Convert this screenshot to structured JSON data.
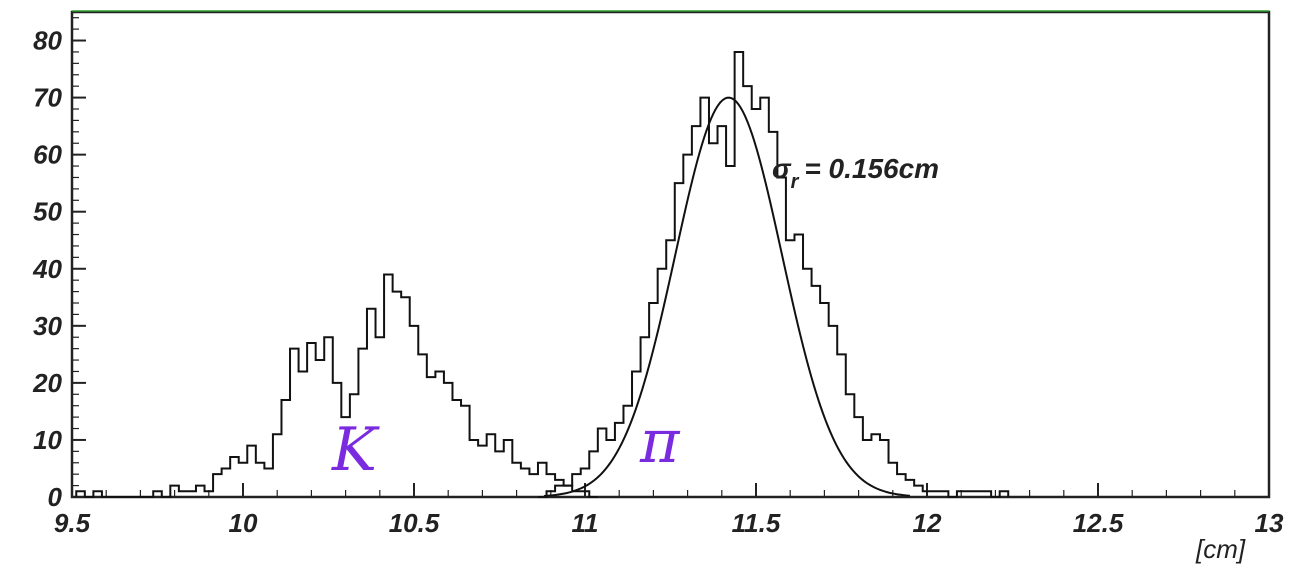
{
  "chart_data": {
    "type": "histogram",
    "title": "",
    "xlabel": "[cm]",
    "ylabel": "",
    "xlim": [
      9.5,
      13
    ],
    "ylim": [
      0,
      85
    ],
    "bin_width": 0.025,
    "x_ticks": [
      "9.5",
      "10",
      "10.5",
      "11",
      "11.5",
      "12",
      "12.5",
      "13"
    ],
    "y_ticks": [
      "0",
      "10",
      "20",
      "30",
      "40",
      "50",
      "60",
      "70",
      "80"
    ],
    "series": [
      {
        "name": "K",
        "bins": [
          [
            9.525,
            1
          ],
          [
            9.55,
            0
          ],
          [
            9.575,
            1
          ],
          [
            9.6,
            0
          ],
          [
            9.625,
            0
          ],
          [
            9.65,
            0
          ],
          [
            9.675,
            0
          ],
          [
            9.7,
            0
          ],
          [
            9.725,
            0
          ],
          [
            9.75,
            1
          ],
          [
            9.775,
            0
          ],
          [
            9.8,
            2
          ],
          [
            9.825,
            1
          ],
          [
            9.85,
            1
          ],
          [
            9.875,
            2
          ],
          [
            9.9,
            1
          ],
          [
            9.925,
            4
          ],
          [
            9.95,
            5
          ],
          [
            9.975,
            7
          ],
          [
            10.0,
            6
          ],
          [
            10.025,
            9
          ],
          [
            10.05,
            6
          ],
          [
            10.075,
            5
          ],
          [
            10.1,
            11
          ],
          [
            10.125,
            17
          ],
          [
            10.15,
            26
          ],
          [
            10.175,
            22
          ],
          [
            10.2,
            27
          ],
          [
            10.225,
            24
          ],
          [
            10.25,
            28
          ],
          [
            10.275,
            20
          ],
          [
            10.3,
            14
          ],
          [
            10.325,
            18
          ],
          [
            10.35,
            26
          ],
          [
            10.375,
            33
          ],
          [
            10.4,
            28
          ],
          [
            10.425,
            39
          ],
          [
            10.45,
            36
          ],
          [
            10.475,
            35
          ],
          [
            10.5,
            30
          ],
          [
            10.525,
            25
          ],
          [
            10.55,
            21
          ],
          [
            10.575,
            22
          ],
          [
            10.6,
            20
          ],
          [
            10.625,
            17
          ],
          [
            10.65,
            16
          ],
          [
            10.675,
            10
          ],
          [
            10.7,
            9
          ],
          [
            10.725,
            11
          ],
          [
            10.75,
            8
          ],
          [
            10.775,
            10
          ],
          [
            10.8,
            6
          ],
          [
            10.825,
            5
          ],
          [
            10.85,
            4
          ],
          [
            10.875,
            6
          ],
          [
            10.9,
            4
          ],
          [
            10.925,
            3
          ],
          [
            10.95,
            2
          ],
          [
            10.975,
            1
          ],
          [
            11.0,
            1
          ],
          [
            11.025,
            0
          ]
        ]
      },
      {
        "name": "π",
        "bins": [
          [
            10.875,
            0
          ],
          [
            10.9,
            1
          ],
          [
            10.925,
            2
          ],
          [
            10.95,
            2
          ],
          [
            10.975,
            4
          ],
          [
            11.0,
            5
          ],
          [
            11.025,
            8
          ],
          [
            11.05,
            12
          ],
          [
            11.075,
            10
          ],
          [
            11.1,
            13
          ],
          [
            11.125,
            16
          ],
          [
            11.15,
            22
          ],
          [
            11.175,
            28
          ],
          [
            11.2,
            34
          ],
          [
            11.225,
            40
          ],
          [
            11.25,
            45
          ],
          [
            11.275,
            55
          ],
          [
            11.3,
            60
          ],
          [
            11.325,
            65
          ],
          [
            11.35,
            70
          ],
          [
            11.375,
            62
          ],
          [
            11.4,
            65
          ],
          [
            11.425,
            58
          ],
          [
            11.45,
            78
          ],
          [
            11.475,
            72
          ],
          [
            11.5,
            68
          ],
          [
            11.525,
            70
          ],
          [
            11.55,
            64
          ],
          [
            11.575,
            56
          ],
          [
            11.6,
            45
          ],
          [
            11.625,
            46
          ],
          [
            11.65,
            40
          ],
          [
            11.675,
            37
          ],
          [
            11.7,
            34
          ],
          [
            11.725,
            30
          ],
          [
            11.75,
            25
          ],
          [
            11.775,
            18
          ],
          [
            11.8,
            14
          ],
          [
            11.825,
            10
          ],
          [
            11.85,
            11
          ],
          [
            11.875,
            10
          ],
          [
            11.9,
            6
          ],
          [
            11.925,
            4
          ],
          [
            11.95,
            3
          ],
          [
            11.975,
            2
          ],
          [
            12.0,
            1
          ],
          [
            12.025,
            1
          ],
          [
            12.05,
            1
          ],
          [
            12.075,
            0
          ],
          [
            12.1,
            1
          ],
          [
            12.125,
            1
          ],
          [
            12.15,
            1
          ],
          [
            12.175,
            1
          ],
          [
            12.2,
            0
          ],
          [
            12.225,
            1
          ]
        ]
      }
    ],
    "fit": {
      "type": "gaussian",
      "mean": 11.42,
      "sigma": 0.156,
      "amplitude": 70,
      "range": [
        10.88,
        11.95
      ]
    },
    "annotations": {
      "sigma_symbol": "σ",
      "sigma_sub": "r",
      "sigma_value": "= 0.156cm",
      "k_label": "K",
      "pi_label": "π"
    }
  }
}
